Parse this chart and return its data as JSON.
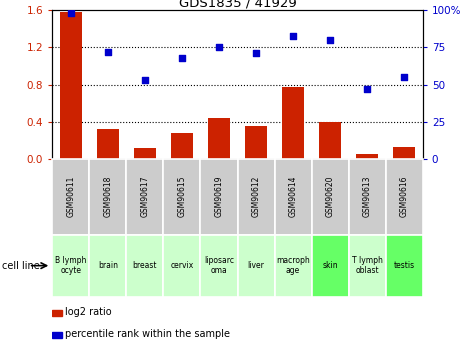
{
  "title": "GDS1835 / 41929",
  "gsm_labels": [
    "GSM90611",
    "GSM90618",
    "GSM90617",
    "GSM90615",
    "GSM90619",
    "GSM90612",
    "GSM90614",
    "GSM90620",
    "GSM90613",
    "GSM90616"
  ],
  "cell_labels": [
    "B lymph\nocyte",
    "brain",
    "breast",
    "cervix",
    "liposarc\noma",
    "liver",
    "macroph\nage",
    "skin",
    "T lymph\noblast",
    "testis"
  ],
  "cell_bg_colors": [
    "#ccffcc",
    "#ccffcc",
    "#ccffcc",
    "#ccffcc",
    "#ccffcc",
    "#ccffcc",
    "#ccffcc",
    "#66ff66",
    "#ccffcc",
    "#66ff66"
  ],
  "log2_ratio": [
    1.58,
    0.32,
    0.12,
    0.28,
    0.44,
    0.35,
    0.77,
    0.4,
    0.05,
    0.13
  ],
  "percentile_rank": [
    98,
    72,
    53,
    68,
    75,
    71,
    83,
    80,
    47,
    55
  ],
  "left_ylim": [
    0,
    1.6
  ],
  "right_ylim": [
    0,
    100
  ],
  "left_yticks": [
    0,
    0.4,
    0.8,
    1.2,
    1.6
  ],
  "right_yticks": [
    0,
    25,
    50,
    75,
    100
  ],
  "right_yticklabels": [
    "0",
    "25",
    "50",
    "75",
    "100%"
  ],
  "bar_color": "#cc2200",
  "scatter_color": "#0000cc",
  "gsm_bg_color": "#cccccc",
  "legend_bar_label": "log2 ratio",
  "legend_scatter_label": "percentile rank within the sample",
  "cell_line_label": "cell line"
}
